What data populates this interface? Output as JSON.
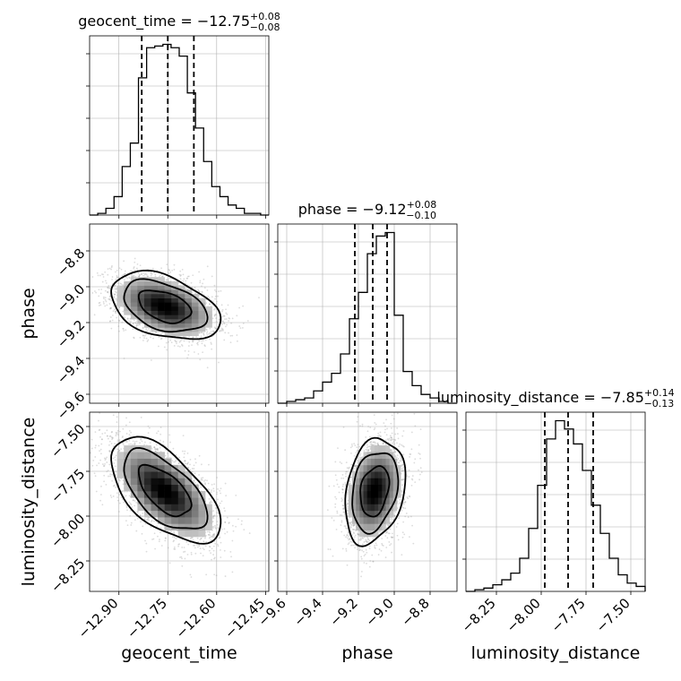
{
  "chart_data": [
    {
      "type": "histogram",
      "panel": "diag-geocent_time",
      "parameter": "geocent_time",
      "title": {
        "prefix": "geocent_time = ",
        "value": "−12.75",
        "upper": "+0.08",
        "lower": "−0.08"
      },
      "xlim": [
        -12.99,
        -12.44
      ],
      "x_ticks": [
        -12.9,
        -12.75,
        -12.6,
        -12.45
      ],
      "quantiles": [
        -12.83,
        -12.75,
        -12.67
      ],
      "bin_edges": [
        -12.99,
        -12.965,
        -12.94,
        -12.915,
        -12.89,
        -12.865,
        -12.84,
        -12.815,
        -12.79,
        -12.765,
        -12.74,
        -12.715,
        -12.69,
        -12.665,
        -12.64,
        -12.615,
        -12.59,
        -12.565,
        -12.54,
        -12.515,
        -12.49,
        -12.465,
        -12.44
      ],
      "counts": [
        0,
        1,
        4,
        11,
        29,
        43,
        82,
        100,
        101,
        102,
        100,
        95,
        73,
        52,
        32,
        17,
        11,
        6,
        4,
        1,
        1,
        0
      ]
    },
    {
      "type": "histogram",
      "panel": "diag-phase",
      "parameter": "phase",
      "title": {
        "prefix": "phase = ",
        "value": "−9.12",
        "upper": "+0.08",
        "lower": "−0.10"
      },
      "xlim": [
        -9.65,
        -8.65
      ],
      "x_ticks": [
        -9.6,
        -9.4,
        -9.2,
        -9.0,
        -8.8
      ],
      "quantiles": [
        -9.22,
        -9.12,
        -9.04
      ],
      "bin_edges": [
        -9.65,
        -9.6,
        -9.55,
        -9.5,
        -9.45,
        -9.4,
        -9.35,
        -9.3,
        -9.25,
        -9.2,
        -9.15,
        -9.1,
        -9.05,
        -9.0,
        -8.95,
        -8.9,
        -8.85,
        -8.8,
        -8.75,
        -8.7,
        -8.65
      ],
      "counts": [
        0,
        1,
        2,
        3,
        7,
        12,
        17,
        28,
        48,
        63,
        85,
        95,
        97,
        50,
        18,
        10,
        5,
        3,
        1,
        0
      ]
    },
    {
      "type": "histogram",
      "panel": "diag-luminosity_distance",
      "parameter": "luminosity_distance",
      "title": {
        "prefix": "luminosity_distance = ",
        "value": "−7.85",
        "upper": "+0.14",
        "lower": "−0.13"
      },
      "xlim": [
        -8.42,
        -7.42
      ],
      "x_ticks": [
        -8.25,
        -8.0,
        -7.75,
        -7.5
      ],
      "quantiles": [
        -7.98,
        -7.85,
        -7.71
      ],
      "bin_edges": [
        -8.42,
        -8.37,
        -8.32,
        -8.27,
        -8.22,
        -8.17,
        -8.12,
        -8.07,
        -8.02,
        -7.97,
        -7.92,
        -7.87,
        -7.82,
        -7.77,
        -7.72,
        -7.67,
        -7.62,
        -7.57,
        -7.52,
        -7.47,
        -7.42
      ],
      "counts": [
        0,
        1,
        2,
        4,
        7,
        11,
        20,
        38,
        64,
        92,
        103,
        98,
        89,
        73,
        52,
        35,
        20,
        10,
        5,
        3
      ]
    },
    {
      "type": "2d-density-contour",
      "panel": "joint-geocent_time-phase",
      "x_param": "geocent_time",
      "y_param": "phase",
      "xlim": [
        -12.99,
        -12.44
      ],
      "ylim": [
        -9.65,
        -8.65
      ],
      "x_ticks": [
        -12.9,
        -12.75,
        -12.6,
        -12.45
      ],
      "y_ticks": [
        -8.8,
        -9.0,
        -9.2,
        -9.4,
        -9.6
      ],
      "center": [
        -12.76,
        -9.11
      ],
      "sigma": [
        0.08,
        0.09
      ],
      "correlation": -0.4,
      "n_points": 3000
    },
    {
      "type": "2d-density-contour",
      "panel": "joint-geocent_time-luminosity_distance",
      "x_param": "geocent_time",
      "y_param": "luminosity_distance",
      "xlim": [
        -12.99,
        -12.44
      ],
      "ylim": [
        -8.42,
        -7.42
      ],
      "x_ticks": [
        -12.9,
        -12.75,
        -12.6,
        -12.45
      ],
      "y_ticks": [
        -7.5,
        -7.75,
        -8.0,
        -8.25
      ],
      "center": [
        -12.76,
        -7.86
      ],
      "sigma": [
        0.08,
        0.14
      ],
      "correlation": -0.6,
      "n_points": 3000
    },
    {
      "type": "2d-density-contour",
      "panel": "joint-phase-luminosity_distance",
      "x_param": "phase",
      "y_param": "luminosity_distance",
      "xlim": [
        -9.65,
        -8.65
      ],
      "ylim": [
        -8.42,
        -7.42
      ],
      "x_ticks": [
        -9.6,
        -9.4,
        -9.2,
        -9.0,
        -8.8
      ],
      "y_ticks": [
        -7.5,
        -7.75,
        -8.0,
        -8.25
      ],
      "center": [
        -9.11,
        -7.86
      ],
      "sigma": [
        0.08,
        0.14
      ],
      "correlation": 0.25,
      "n_points": 3000
    }
  ],
  "axis_labels": {
    "geocent_time": "geocent_time",
    "phase": "phase",
    "luminosity_distance": "luminosity_distance"
  },
  "colors": {
    "line": "#000000",
    "grid": "#b0b0b0",
    "points": "#9a9a9a"
  }
}
